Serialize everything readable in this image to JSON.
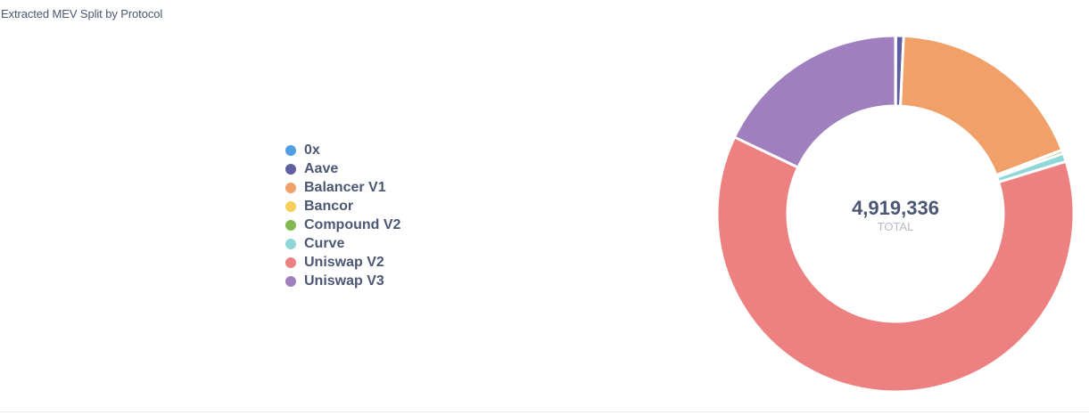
{
  "card": {
    "title": "Extracted MEV Split by Protocol"
  },
  "chart_data": {
    "type": "pie",
    "subtype": "donut",
    "title": "Extracted MEV Split by Protocol",
    "total_value": "4,919,336",
    "total_label": "TOTAL",
    "legend_position": "left",
    "categories": [
      "0x",
      "Aave",
      "Balancer V1",
      "Bancor",
      "Compound V2",
      "Curve",
      "Uniswap V2",
      "Uniswap V3"
    ],
    "series": [
      {
        "values": [
          1700,
          34400,
          907000,
          1500,
          14700,
          37400,
          3041000,
          881600
        ],
        "colors": [
          "#509ee3",
          "#5e5fa0",
          "#f0a068",
          "#f7d05c",
          "#83b851",
          "#8fd7d9",
          "#ed8181",
          "#a07fbe"
        ]
      }
    ]
  }
}
